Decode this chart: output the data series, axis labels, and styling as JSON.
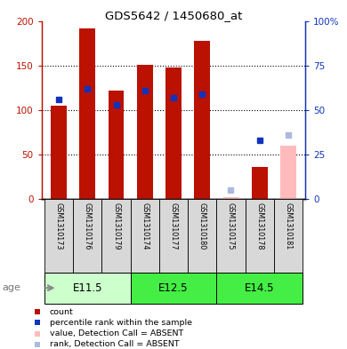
{
  "title": "GDS5642 / 1450680_at",
  "samples": [
    "GSM1310173",
    "GSM1310176",
    "GSM1310179",
    "GSM1310174",
    "GSM1310177",
    "GSM1310180",
    "GSM1310175",
    "GSM1310178",
    "GSM1310181"
  ],
  "count_values": [
    105,
    192,
    122,
    151,
    148,
    178,
    null,
    36,
    null
  ],
  "rank_values_pct": [
    56,
    62,
    53,
    61,
    57,
    59,
    null,
    33,
    null
  ],
  "absent_count_values": [
    null,
    null,
    null,
    null,
    null,
    null,
    2,
    null,
    60
  ],
  "absent_rank_values_pct": [
    null,
    null,
    null,
    null,
    null,
    null,
    5,
    null,
    36
  ],
  "ylim_left": [
    0,
    200
  ],
  "ylim_right": [
    0,
    100
  ],
  "yticks_left": [
    0,
    50,
    100,
    150,
    200
  ],
  "yticks_right": [
    0,
    25,
    50,
    75,
    100
  ],
  "ytick_labels_right": [
    "0",
    "25",
    "50",
    "75",
    "100%"
  ],
  "color_count": "#BB1100",
  "color_rank": "#1133BB",
  "color_absent_count": "#FFBBBB",
  "color_absent_rank": "#AABBDD",
  "group_defs": [
    {
      "label": "E11.5",
      "start": 0,
      "end": 3,
      "color": "#CCFFCC"
    },
    {
      "label": "E12.5",
      "start": 3,
      "end": 6,
      "color": "#44EE44"
    },
    {
      "label": "E14.5",
      "start": 6,
      "end": 9,
      "color": "#44EE44"
    }
  ]
}
